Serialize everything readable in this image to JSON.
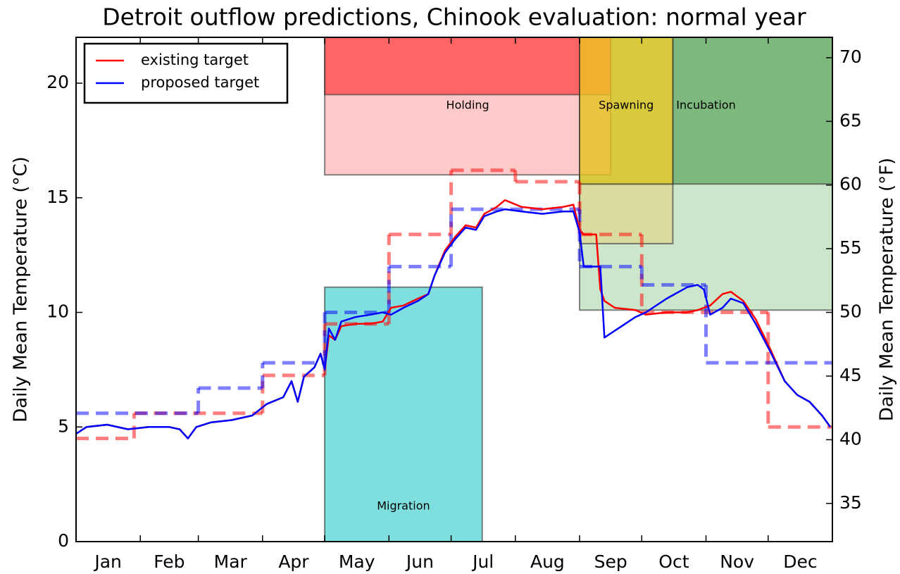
{
  "chart_data": {
    "type": "line",
    "title": "Detroit outflow predictions, Chinook evaluation: normal year",
    "ylabel": "Daily Mean Temperature (°C)",
    "y2label": "Daily Mean Temperature (°F)",
    "xlim": [
      0,
      365
    ],
    "xticks": [
      31,
      59,
      90,
      120,
      151,
      181,
      212,
      243,
      273,
      304,
      334
    ],
    "categories": [
      "Jan",
      "Feb",
      "Mar",
      "Apr",
      "May",
      "Jun",
      "Jul",
      "Aug",
      "Sep",
      "Oct",
      "Nov",
      "Dec"
    ],
    "ylim": [
      0,
      22
    ],
    "yticks": [
      0,
      5,
      10,
      15,
      20
    ],
    "y2lim": [
      32,
      71.6
    ],
    "y2ticks": [
      35,
      40,
      45,
      50,
      55,
      60,
      65,
      70
    ],
    "legend": "upper left",
    "x": [
      0,
      5,
      15,
      25,
      35,
      45,
      50,
      54,
      58,
      65,
      75,
      85,
      92,
      100,
      104,
      107,
      110,
      115,
      118,
      120,
      122,
      125,
      128,
      135,
      142,
      148,
      152,
      158,
      165,
      170,
      173,
      178,
      183,
      188,
      193,
      197,
      203,
      207,
      215,
      225,
      235,
      240,
      243,
      245,
      251,
      253,
      255,
      260,
      270,
      275,
      285,
      295,
      300,
      303,
      306,
      312,
      316,
      322,
      328,
      335,
      342,
      348,
      354,
      360,
      364
    ],
    "series": [
      {
        "name": "existing target",
        "color": "#ff0000",
        "values": [
          4.7,
          5.0,
          5.1,
          4.9,
          5.0,
          5.0,
          4.9,
          4.5,
          5.0,
          5.2,
          5.3,
          5.5,
          6.0,
          6.3,
          7.0,
          6.1,
          7.2,
          7.6,
          8.2,
          7.5,
          9.0,
          8.8,
          9.4,
          9.5,
          9.5,
          9.6,
          10.2,
          10.3,
          10.6,
          10.8,
          11.6,
          12.7,
          13.3,
          13.8,
          13.7,
          14.3,
          14.6,
          14.9,
          14.6,
          14.5,
          14.6,
          14.7,
          13.6,
          13.4,
          13.4,
          11.0,
          10.5,
          10.2,
          10.1,
          9.9,
          10.0,
          10.0,
          10.1,
          10.2,
          10.3,
          10.8,
          10.9,
          10.5,
          9.7,
          8.4,
          7.0,
          6.4,
          6.1,
          5.5,
          5.0
        ]
      },
      {
        "name": "proposed target",
        "color": "#0000ff",
        "values": [
          4.7,
          5.0,
          5.1,
          4.9,
          5.0,
          5.0,
          4.9,
          4.5,
          5.0,
          5.2,
          5.3,
          5.5,
          6.0,
          6.3,
          7.0,
          6.1,
          7.2,
          7.6,
          8.2,
          7.5,
          9.3,
          8.8,
          9.6,
          9.8,
          9.9,
          10.0,
          9.9,
          10.2,
          10.5,
          10.8,
          11.6,
          12.6,
          13.2,
          13.7,
          13.6,
          14.2,
          14.4,
          14.5,
          14.4,
          14.3,
          14.4,
          14.4,
          13.5,
          12.0,
          12.0,
          12.0,
          8.9,
          9.2,
          9.8,
          10.0,
          10.6,
          11.1,
          11.2,
          11.0,
          9.9,
          10.2,
          10.6,
          10.4,
          9.5,
          8.3,
          7.0,
          6.4,
          6.1,
          5.5,
          5.0
        ]
      }
    ],
    "targets": [
      {
        "color": "#ff0000",
        "edges": [
          0,
          28,
          90,
          120,
          151,
          181,
          212,
          243,
          273,
          334,
          365
        ],
        "values": [
          4.5,
          5.6,
          7.25,
          9.5,
          13.4,
          16.2,
          15.7,
          13.4,
          10.0,
          5.0
        ]
      },
      {
        "color": "#0000ff",
        "edges": [
          0,
          59,
          90,
          120,
          151,
          181,
          243,
          273,
          304,
          365
        ],
        "values": [
          5.6,
          6.7,
          7.8,
          10.0,
          12.0,
          14.5,
          12.0,
          11.2,
          7.8
        ]
      }
    ],
    "regions": [
      {
        "label": "Incubation",
        "x": [
          243,
          365
        ],
        "bands": [
          {
            "y": [
              10.1,
              22
            ],
            "color": "#9acd9a"
          },
          {
            "y": [
              15.6,
              22
            ],
            "color": "#2e8b2e"
          }
        ]
      },
      {
        "label": "Holding",
        "x": [
          120,
          258
        ],
        "bands": [
          {
            "y": [
              16,
              22
            ],
            "color": "#ff9696"
          },
          {
            "y": [
              19.5,
              22
            ],
            "color": "#ff0000"
          }
        ]
      },
      {
        "label": "Spawning",
        "x": [
          243,
          288
        ],
        "bands": [
          {
            "y": [
              13,
              22
            ],
            "color": "#e5d073"
          },
          {
            "y": [
              15.6,
              22
            ],
            "color": "#ffd000"
          }
        ]
      },
      {
        "label": "Migration",
        "x": [
          120,
          196
        ],
        "bands": [
          {
            "y": [
              0,
              11.1
            ],
            "color": "#00bfbf"
          }
        ]
      }
    ]
  }
}
